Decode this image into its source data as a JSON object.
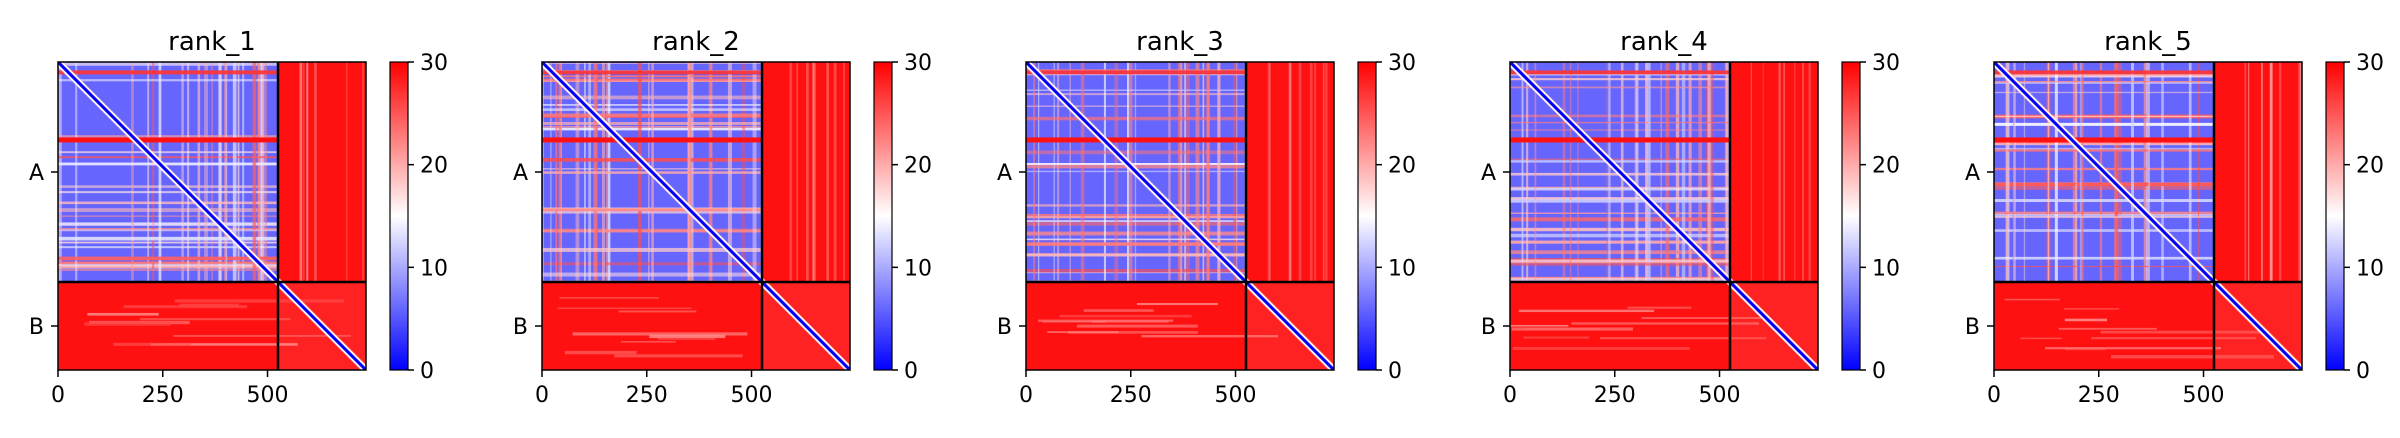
{
  "chart_data": {
    "type": "heatmap",
    "description_of_values": "predicted aligned error matrix, two chains",
    "chains": [
      {
        "label": "A",
        "start": 0,
        "end": 525
      },
      {
        "label": "B",
        "start": 525,
        "end": 735
      }
    ],
    "xlim": [
      0,
      735
    ],
    "xticks": [
      0,
      250,
      500
    ],
    "colorbar": {
      "min": 0,
      "max": 30,
      "ticks": [
        0,
        10,
        20,
        30
      ],
      "colormap": "bwr",
      "colors": [
        "#0000ff",
        "#ffffff",
        "#ff0000"
      ]
    },
    "panels": [
      {
        "title": "rank_1",
        "pae_within_A": 6,
        "pae_between": 29,
        "pae_within_B": 28
      },
      {
        "title": "rank_2",
        "pae_within_A": 6,
        "pae_between": 29,
        "pae_within_B": 28
      },
      {
        "title": "rank_3",
        "pae_within_A": 6,
        "pae_between": 29,
        "pae_within_B": 28
      },
      {
        "title": "rank_4",
        "pae_within_A": 6,
        "pae_between": 29,
        "pae_within_B": 28
      },
      {
        "title": "rank_5",
        "pae_within_A": 6,
        "pae_between": 29,
        "pae_within_B": 28
      }
    ]
  }
}
